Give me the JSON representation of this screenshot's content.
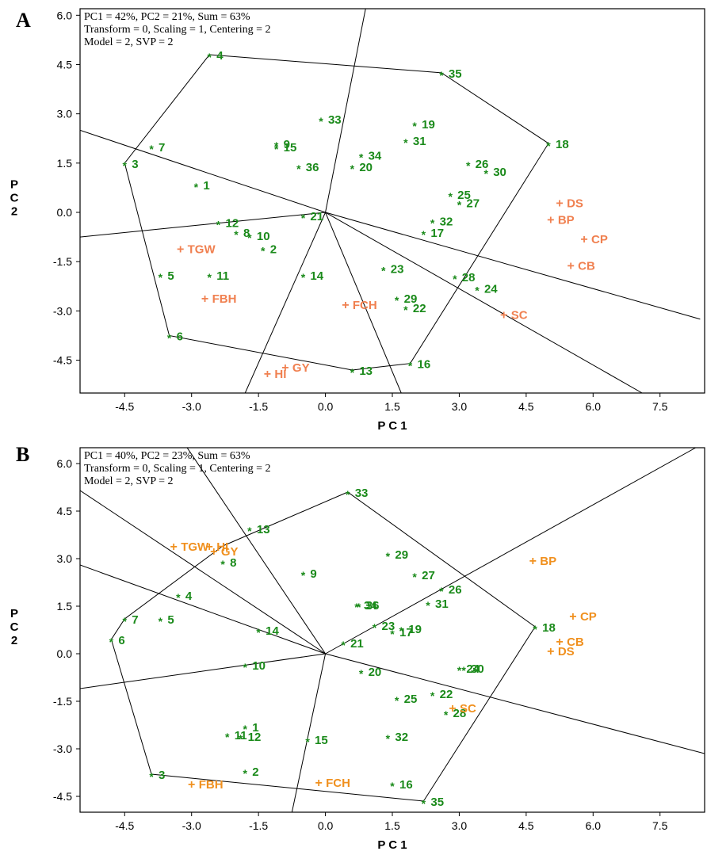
{
  "colors": {
    "genotype": "#1a8a1a",
    "trait_A": "#f08050",
    "trait_B": "#f0901e",
    "line": "#000000"
  },
  "chart_data": [
    {
      "type": "scatter",
      "panel": "A",
      "info": [
        "PC1 = 42%, PC2 = 21%, Sum = 63%",
        "Transform = 0, Scaling = 1, Centering = 2",
        "Model = 2, SVP = 2"
      ],
      "xlabel": "P C 1",
      "ylabel": "P C 2",
      "xlim": [
        -5.5,
        8.5
      ],
      "ylim": [
        -5.5,
        6.2
      ],
      "xticks": [
        "-4.5",
        "-3.0",
        "-1.5",
        "0.0",
        "1.5",
        "3.0",
        "4.5",
        "6.0",
        "7.5"
      ],
      "xtick_values": [
        -4.5,
        -3.0,
        -1.5,
        0.0,
        1.5,
        3.0,
        4.5,
        6.0,
        7.5
      ],
      "yticks": [
        "6.0",
        "4.5",
        "3.0",
        "1.5",
        "0.0",
        "-1.5",
        "-3.0",
        "-4.5"
      ],
      "ytick_values": [
        6.0,
        4.5,
        3.0,
        1.5,
        0.0,
        -1.5,
        -3.0,
        -4.5
      ],
      "genotypes": [
        {
          "label": "1",
          "x": -2.9,
          "y": 0.85
        },
        {
          "label": "2",
          "x": -1.4,
          "y": -1.1
        },
        {
          "label": "3",
          "x": -4.5,
          "y": 1.5
        },
        {
          "label": "4",
          "x": -2.6,
          "y": 4.8
        },
        {
          "label": "5",
          "x": -3.7,
          "y": -1.9
        },
        {
          "label": "6",
          "x": -3.5,
          "y": -3.75
        },
        {
          "label": "7",
          "x": -3.9,
          "y": 2.0
        },
        {
          "label": "8",
          "x": -2.0,
          "y": -0.6
        },
        {
          "label": "9",
          "x": -1.1,
          "y": 2.1
        },
        {
          "label": "10",
          "x": -1.7,
          "y": -0.7
        },
        {
          "label": "11",
          "x": -2.6,
          "y": -1.9
        },
        {
          "label": "12",
          "x": -2.4,
          "y": -0.3
        },
        {
          "label": "13",
          "x": 0.6,
          "y": -4.8
        },
        {
          "label": "14",
          "x": -0.5,
          "y": -1.9
        },
        {
          "label": "15",
          "x": -1.1,
          "y": 2.0
        },
        {
          "label": "16",
          "x": 1.9,
          "y": -4.6
        },
        {
          "label": "17",
          "x": 2.2,
          "y": -0.6
        },
        {
          "label": "18",
          "x": 5.0,
          "y": 2.1
        },
        {
          "label": "19",
          "x": 2.0,
          "y": 2.7
        },
        {
          "label": "20",
          "x": 0.6,
          "y": 1.4
        },
        {
          "label": "21",
          "x": -0.5,
          "y": -0.1
        },
        {
          "label": "22",
          "x": 1.8,
          "y": -2.9
        },
        {
          "label": "23",
          "x": 1.3,
          "y": -1.7
        },
        {
          "label": "24",
          "x": 3.4,
          "y": -2.3
        },
        {
          "label": "25",
          "x": 2.8,
          "y": 0.55
        },
        {
          "label": "26",
          "x": 3.2,
          "y": 1.5
        },
        {
          "label": "27",
          "x": 3.0,
          "y": 0.3
        },
        {
          "label": "28",
          "x": 2.9,
          "y": -1.95
        },
        {
          "label": "29",
          "x": 1.6,
          "y": -2.6
        },
        {
          "label": "30",
          "x": 3.6,
          "y": 1.25
        },
        {
          "label": "31",
          "x": 1.8,
          "y": 2.2
        },
        {
          "label": "32",
          "x": 2.4,
          "y": -0.25
        },
        {
          "label": "33",
          "x": -0.1,
          "y": 2.85
        },
        {
          "label": "34",
          "x": 0.8,
          "y": 1.75
        },
        {
          "label": "35",
          "x": 2.6,
          "y": 4.25
        },
        {
          "label": "36",
          "x": -0.6,
          "y": 1.4
        }
      ],
      "traits": [
        {
          "label": "DS",
          "x": 5.25,
          "y": 0.3
        },
        {
          "label": "BP",
          "x": 5.05,
          "y": -0.2
        },
        {
          "label": "CP",
          "x": 5.8,
          "y": -0.8
        },
        {
          "label": "CB",
          "x": 5.5,
          "y": -1.6
        },
        {
          "label": "SC",
          "x": 4.0,
          "y": -3.1
        },
        {
          "label": "TGW",
          "x": -3.25,
          "y": -1.1
        },
        {
          "label": "FBH",
          "x": -2.7,
          "y": -2.6
        },
        {
          "label": "FCH",
          "x": 0.45,
          "y": -2.8
        },
        {
          "label": "GY",
          "x": -0.9,
          "y": -4.7
        },
        {
          "label": "HI",
          "x": -1.3,
          "y": -4.9
        }
      ],
      "polygon": [
        [
          -2.6,
          4.8
        ],
        [
          2.6,
          4.25
        ],
        [
          5.0,
          2.1
        ],
        [
          1.9,
          -4.6
        ],
        [
          0.6,
          -4.8
        ],
        [
          -3.5,
          -3.75
        ],
        [
          -4.5,
          1.5
        ]
      ],
      "rays": [
        [
          0.9,
          6.2
        ],
        [
          8.4,
          -3.25
        ],
        [
          7.1,
          -5.5
        ],
        [
          -1.8,
          -5.5
        ],
        [
          1.7,
          -5.5
        ],
        [
          -5.5,
          -0.75
        ],
        [
          -5.5,
          2.5
        ]
      ]
    },
    {
      "type": "scatter",
      "panel": "B",
      "info": [
        "PC1 = 40%, PC2 = 23%, Sum = 63%",
        "Transform = 0, Scaling = 1, Centering = 2",
        "Model = 2, SVP = 2"
      ],
      "xlabel": "P C 1",
      "ylabel": "P C 2",
      "xlim": [
        -5.5,
        8.5
      ],
      "ylim": [
        -5.0,
        6.5
      ],
      "xticks": [
        "-4.5",
        "-3.0",
        "-1.5",
        "0.0",
        "1.5",
        "3.0",
        "4.5",
        "6.0",
        "7.5"
      ],
      "xtick_values": [
        -4.5,
        -3.0,
        -1.5,
        0.0,
        1.5,
        3.0,
        4.5,
        6.0,
        7.5
      ],
      "yticks": [
        "6.0",
        "4.5",
        "3.0",
        "1.5",
        "0.0",
        "-1.5",
        "-3.0",
        "-4.5"
      ],
      "ytick_values": [
        6.0,
        4.5,
        3.0,
        1.5,
        0.0,
        -1.5,
        -3.0,
        -4.5
      ],
      "genotypes": [
        {
          "label": "1",
          "x": -1.8,
          "y": -2.3
        },
        {
          "label": "2",
          "x": -1.8,
          "y": -3.7
        },
        {
          "label": "3",
          "x": -3.9,
          "y": -3.8
        },
        {
          "label": "4",
          "x": -3.3,
          "y": 1.85
        },
        {
          "label": "5",
          "x": -3.7,
          "y": 1.1
        },
        {
          "label": "6",
          "x": -4.8,
          "y": 0.45
        },
        {
          "label": "7",
          "x": -4.5,
          "y": 1.1
        },
        {
          "label": "8",
          "x": -2.3,
          "y": 2.9
        },
        {
          "label": "9",
          "x": -0.5,
          "y": 2.55
        },
        {
          "label": "10",
          "x": -1.8,
          "y": -0.35
        },
        {
          "label": "11",
          "x": -2.2,
          "y": -2.55
        },
        {
          "label": "12",
          "x": -1.9,
          "y": -2.6
        },
        {
          "label": "13",
          "x": -1.7,
          "y": 3.95
        },
        {
          "label": "14",
          "x": -1.5,
          "y": 0.75
        },
        {
          "label": "15",
          "x": -0.4,
          "y": -2.7
        },
        {
          "label": "16",
          "x": 1.5,
          "y": -4.1
        },
        {
          "label": "17",
          "x": 1.5,
          "y": 0.7
        },
        {
          "label": "18",
          "x": 4.7,
          "y": 0.85
        },
        {
          "label": "19",
          "x": 1.7,
          "y": 0.8
        },
        {
          "label": "20",
          "x": 0.8,
          "y": -0.55
        },
        {
          "label": "21",
          "x": 0.4,
          "y": 0.35
        },
        {
          "label": "22",
          "x": 2.4,
          "y": -1.25
        },
        {
          "label": "23",
          "x": 1.1,
          "y": 0.9
        },
        {
          "label": "24",
          "x": 3.0,
          "y": -0.45
        },
        {
          "label": "25",
          "x": 1.6,
          "y": -1.4
        },
        {
          "label": "26",
          "x": 2.6,
          "y": 2.05
        },
        {
          "label": "27",
          "x": 2.0,
          "y": 2.5
        },
        {
          "label": "28",
          "x": 2.7,
          "y": -1.85
        },
        {
          "label": "29",
          "x": 1.4,
          "y": 3.15
        },
        {
          "label": "30",
          "x": 3.1,
          "y": -0.45
        },
        {
          "label": "31",
          "x": 2.3,
          "y": 1.6
        },
        {
          "label": "32",
          "x": 1.4,
          "y": -2.6
        },
        {
          "label": "33",
          "x": 0.5,
          "y": 5.1
        },
        {
          "label": "34",
          "x": 0.7,
          "y": 1.55
        },
        {
          "label": "35",
          "x": 2.2,
          "y": -4.65
        },
        {
          "label": "36",
          "x": 0.75,
          "y": 1.55
        }
      ],
      "traits": [
        {
          "label": "BP",
          "x": 4.65,
          "y": 2.95
        },
        {
          "label": "CP",
          "x": 5.55,
          "y": 1.2
        },
        {
          "label": "CB",
          "x": 5.25,
          "y": 0.4
        },
        {
          "label": "DS",
          "x": 5.05,
          "y": 0.1
        },
        {
          "label": "SC",
          "x": 2.85,
          "y": -1.7
        },
        {
          "label": "TGW",
          "x": -3.4,
          "y": 3.4
        },
        {
          "label": "HI",
          "x": -2.6,
          "y": 3.4
        },
        {
          "label": "GY",
          "x": -2.5,
          "y": 3.25
        },
        {
          "label": "FBH",
          "x": -3.0,
          "y": -4.1
        },
        {
          "label": "FCH",
          "x": -0.15,
          "y": -4.05
        }
      ],
      "polygon": [
        [
          -2.3,
          3.4
        ],
        [
          0.5,
          5.1
        ],
        [
          4.7,
          0.85
        ],
        [
          2.2,
          -4.65
        ],
        [
          -3.9,
          -3.8
        ],
        [
          -4.8,
          0.45
        ],
        [
          -4.5,
          1.1
        ]
      ],
      "rays": [
        [
          -3.1,
          6.5
        ],
        [
          8.3,
          6.5
        ],
        [
          8.5,
          -3.15
        ],
        [
          -0.75,
          -5.0
        ],
        [
          -5.5,
          -1.1
        ],
        [
          -5.5,
          2.8
        ],
        [
          -5.5,
          5.15
        ]
      ]
    }
  ]
}
